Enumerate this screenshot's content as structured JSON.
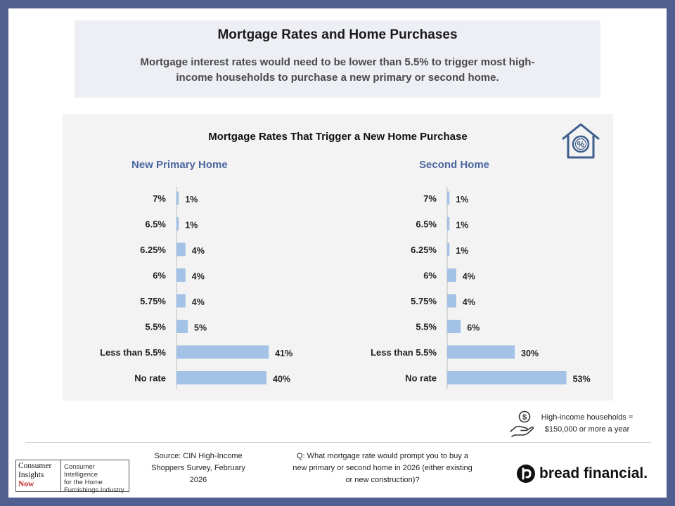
{
  "header": {
    "title": "Mortgage Rates and Home Purchases",
    "subtitle": "Mortgage interest rates would need to be lower than 5.5% to trigger most high-income households to purchase a new primary or second home."
  },
  "chart_data": {
    "type": "bar",
    "orientation": "horizontal",
    "title": "Mortgage Rates That Trigger a New Home Purchase",
    "categories": [
      "7%",
      "6.5%",
      "6.25%",
      "6%",
      "5.75%",
      "5.5%",
      "Less than 5.5%",
      "No rate"
    ],
    "panels": [
      {
        "name": "New Primary Home",
        "values": [
          1,
          1,
          4,
          4,
          4,
          5,
          41,
          40
        ],
        "value_labels": [
          "1%",
          "1%",
          "4%",
          "4%",
          "4%",
          "5%",
          "41%",
          "40%"
        ]
      },
      {
        "name": "Second Home",
        "values": [
          1,
          1,
          1,
          4,
          4,
          6,
          30,
          53
        ],
        "value_labels": [
          "1%",
          "1%",
          "1%",
          "4%",
          "4%",
          "6%",
          "30%",
          "53%"
        ]
      }
    ],
    "unit": "%",
    "bar_color": "#a3c2e6",
    "grid": false
  },
  "note": {
    "icon": "money-hand-icon",
    "line1": "High-income households =",
    "line2": "$150,000 or more a year"
  },
  "footer": {
    "cin_logo": {
      "line1": "Consumer",
      "line2": "Insights",
      "line3": "Now",
      "tag1": "Consumer Intelligence",
      "tag2": "for the Home",
      "tag3": "Furnishings Industry"
    },
    "source": "Source: CIN High-Income Shoppers Survey, February 2026",
    "question": "Q: What mortgage rate would prompt you to buy a new primary or second home in 2026 (either existing or new construction)?",
    "brand": "bread financial."
  },
  "colors": {
    "border": "#4f5f8f",
    "heading": "#4a66a0",
    "bar": "#a3c2e6"
  }
}
